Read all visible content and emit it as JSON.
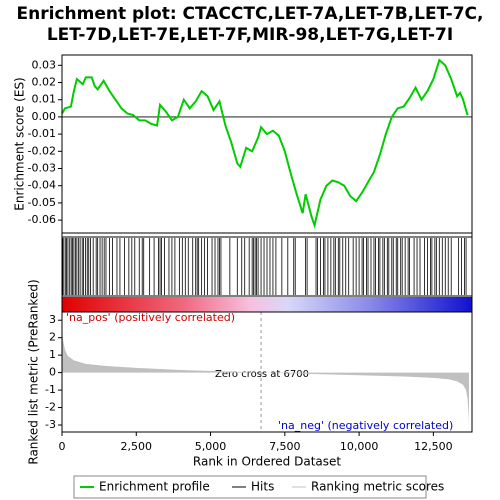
{
  "title": [
    "Enrichment plot: CTACCTC,LET-7A,LET-7B,LET-7C,",
    "LET-7D,LET-7E,LET-7F,MIR-98,LET-7G,LET-7I"
  ],
  "chart_data": [
    {
      "type": "line",
      "name": "Enrichment profile",
      "ylabel": "Enrichment score (ES)",
      "color": "#00cc00",
      "xlim": [
        0,
        13800
      ],
      "ylim": [
        -0.0675,
        0.036
      ],
      "yticks": [
        0.03,
        0.02,
        0.01,
        {
          "value": 0,
          "label": "0.00"
        },
        -0.01,
        -0.02,
        -0.03,
        -0.04,
        -0.05,
        -0.06
      ],
      "x": [
        0,
        100,
        300,
        400,
        500,
        700,
        800,
        1000,
        1100,
        1200,
        1400,
        1600,
        1800,
        2000,
        2200,
        2400,
        2600,
        2800,
        3000,
        3200,
        3300,
        3500,
        3700,
        3900,
        4100,
        4300,
        4500,
        4700,
        4900,
        5100,
        5300,
        5500,
        5700,
        5900,
        6000,
        6200,
        6400,
        6600,
        6700,
        6900,
        7100,
        7300,
        7500,
        7700,
        7900,
        8100,
        8200,
        8400,
        8500,
        8700,
        8900,
        9100,
        9300,
        9500,
        9700,
        9900,
        10100,
        10300,
        10500,
        10700,
        10900,
        11100,
        11300,
        11500,
        11700,
        11900,
        12100,
        12300,
        12500,
        12700,
        12900,
        13100,
        13300,
        13400,
        13500,
        13650
      ],
      "values": [
        0.002,
        0.005,
        0.006,
        0.015,
        0.022,
        0.019,
        0.023,
        0.023,
        0.018,
        0.016,
        0.021,
        0.015,
        0.01,
        0.005,
        0.002,
        0.001,
        -0.002,
        -0.002,
        -0.004,
        -0.005,
        0.007,
        0.003,
        -0.002,
        0.0,
        0.01,
        0.005,
        0.009,
        0.015,
        0.012,
        0.004,
        0.009,
        -0.005,
        -0.015,
        -0.027,
        -0.029,
        -0.018,
        -0.02,
        -0.012,
        -0.006,
        -0.01,
        -0.008,
        -0.011,
        -0.02,
        -0.033,
        -0.045,
        -0.056,
        -0.045,
        -0.058,
        -0.063,
        -0.048,
        -0.04,
        -0.037,
        -0.038,
        -0.04,
        -0.046,
        -0.049,
        -0.044,
        -0.038,
        -0.032,
        -0.022,
        -0.01,
        0.0,
        0.005,
        0.006,
        0.011,
        0.017,
        0.01,
        0.015,
        0.022,
        0.033,
        0.03,
        0.022,
        0.012,
        0.014,
        0.01,
        0.001
      ]
    },
    {
      "type": "hits",
      "name": "Hits",
      "color": "#000000",
      "x": [
        20,
        60,
        110,
        150,
        200,
        260,
        310,
        350,
        400,
        450,
        500,
        560,
        610,
        680,
        720,
        790,
        850,
        900,
        960,
        1050,
        1150,
        1200,
        1280,
        1350,
        1420,
        1480,
        1600,
        1700,
        1850,
        1950,
        2100,
        2250,
        2350,
        2450,
        2600,
        2700,
        2750,
        2950,
        3100,
        3250,
        3300,
        3350,
        3450,
        3600,
        3700,
        3800,
        3950,
        4050,
        4150,
        4250,
        4400,
        4500,
        4550,
        4600,
        4700,
        4800,
        4900,
        5050,
        5150,
        5250,
        5300,
        5350,
        5650,
        5900,
        6050,
        6150,
        6300,
        6400,
        6450,
        6500,
        6550,
        6600,
        6700,
        6800,
        6900,
        7000,
        7100,
        7200,
        7400,
        7600,
        7800,
        7850,
        8200,
        8250,
        8550,
        8600,
        8700,
        8800,
        8850,
        8950,
        9050,
        9150,
        9200,
        9300,
        9350,
        9450,
        9550,
        9650,
        9800,
        9900,
        10000,
        10100,
        10150,
        10250,
        10300,
        10400,
        10500,
        10550,
        10650,
        10700,
        10800,
        10850,
        10950,
        11000,
        11100,
        11150,
        11250,
        11300,
        11400,
        11450,
        11550,
        11650,
        11700,
        11850,
        11950,
        12050,
        12200,
        12300,
        12400,
        12450,
        12550,
        12600,
        12700,
        12800,
        12900,
        13000,
        13100,
        13350,
        13450,
        13550,
        13600
      ]
    },
    {
      "type": "area",
      "name": "Ranking metric scores",
      "ylabel": "Ranked list metric (PreRanked)",
      "xlabel": "Rank in Ordered Dataset",
      "color": "#c0c0c0",
      "xlim": [
        0,
        13800
      ],
      "ylim": [
        -3.4,
        3.47
      ],
      "yticks": [
        3,
        2,
        1,
        0,
        -1,
        -2,
        -3
      ],
      "xticks": [
        0,
        {
          "value": 2500,
          "label": "2,500"
        },
        {
          "value": 5000,
          "label": "5,000"
        },
        {
          "value": 7500,
          "label": "7,500"
        },
        {
          "value": 10000,
          "label": "10,000"
        },
        {
          "value": 12500,
          "label": "12,500"
        }
      ],
      "zero_cross": 6700,
      "annotations": [
        "'na_pos' (positively correlated)",
        "Zero cross at 6700",
        "'na_neg' (negatively correlated)"
      ],
      "x": [
        0,
        30,
        100,
        200,
        400,
        800,
        1500,
        2500,
        4000,
        5500,
        6700,
        8000,
        10000,
        11500,
        12500,
        13000,
        13300,
        13500,
        13600,
        13650,
        13690,
        13700
      ],
      "values": [
        2.9,
        1.9,
        1.3,
        0.95,
        0.7,
        0.5,
        0.38,
        0.27,
        0.15,
        0.07,
        0,
        -0.06,
        -0.15,
        -0.22,
        -0.3,
        -0.38,
        -0.5,
        -0.7,
        -1.0,
        -1.5,
        -2.5,
        -3.3
      ]
    }
  ]
}
